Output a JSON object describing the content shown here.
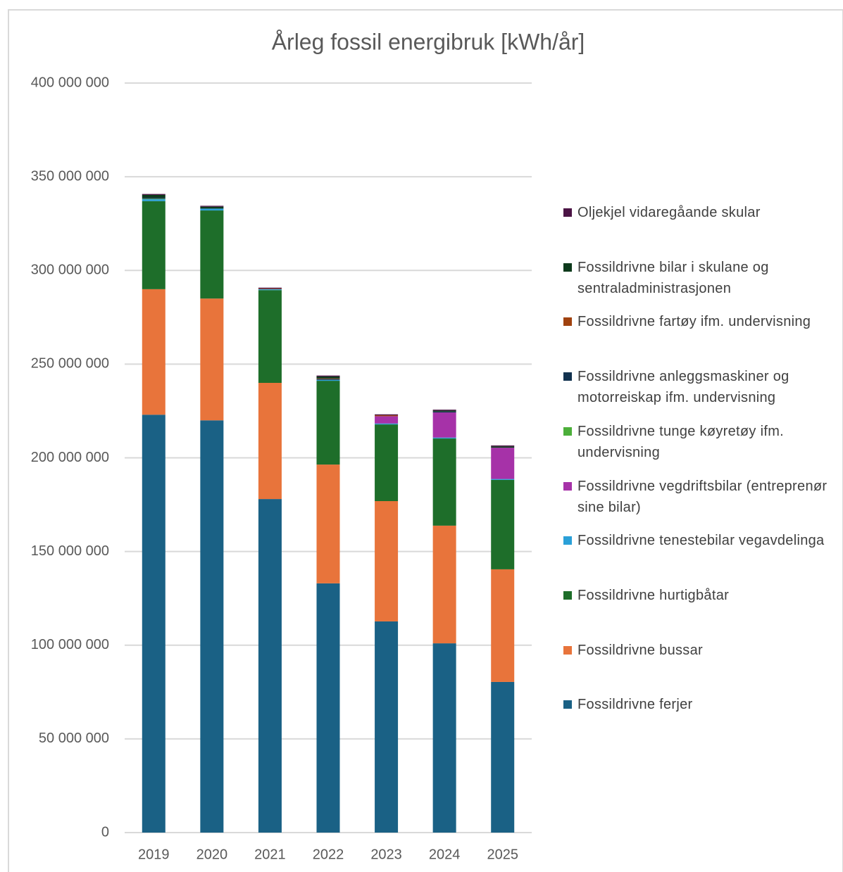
{
  "chart_data": {
    "type": "stacked_bar",
    "title": "Årleg fossil energibruk [kWh/år]",
    "categories": [
      "2019",
      "2020",
      "2021",
      "2022",
      "2023",
      "2024",
      "2025"
    ],
    "series": [
      {
        "name": "Fossildrivne ferjer",
        "color": "#1a6185",
        "values": [
          223000000,
          220000000,
          178000000,
          133000000,
          112700000,
          101000000,
          80400000
        ]
      },
      {
        "name": "Fossildrivne bussar",
        "color": "#e8743b",
        "values": [
          67000000,
          65000000,
          62000000,
          63400000,
          64200000,
          62800000,
          60100000
        ]
      },
      {
        "name": "Fossildrivne hurtigbåtar",
        "color": "#1e6e2a",
        "values": [
          47000000,
          47000000,
          49500000,
          44700000,
          40900000,
          46500000,
          47700000
        ]
      },
      {
        "name": "Fossildrivne tenestebilar vegavdelinga",
        "color": "#2aa0d8",
        "values": [
          1000000,
          1000000,
          500000,
          500000,
          500000,
          500000,
          500000
        ]
      },
      {
        "name": "Fossildrivne vegdriftsbilar (entreprenør sine bilar)",
        "color": "#a632a8",
        "values": [
          0,
          0,
          0,
          0,
          3900000,
          13400000,
          16700000
        ]
      },
      {
        "name": "Fossildrivne tunge køyretøy ifm. undervisning",
        "color": "#4caf3a",
        "values": [
          300000,
          0,
          0,
          0,
          0,
          0,
          0
        ]
      },
      {
        "name": "Fossildrivne anleggsmaskiner og motorreiskap ifm. undervisning",
        "color": "#12324f",
        "values": [
          500000,
          0,
          0,
          500000,
          0,
          500000,
          0
        ]
      },
      {
        "name": "Fossildrivne fartøy ifm. undervisning",
        "color": "#a0420f",
        "values": [
          0,
          0,
          300000,
          300000,
          500000,
          0,
          0
        ]
      },
      {
        "name": "Fossildrivne bilar i skulane og sentraladministrasjonen",
        "color": "#0d3a1c",
        "values": [
          1500000,
          1000000,
          0,
          1000000,
          0,
          500000,
          700000
        ]
      },
      {
        "name": "Oljekjel vidaregåande skular",
        "color": "#4b1445",
        "values": [
          500000,
          500000,
          500000,
          500000,
          500000,
          500000,
          500000
        ]
      }
    ],
    "ylim": [
      0,
      400000000
    ],
    "yticks": [
      0,
      {
        "value": 50000000,
        "label": "50 000 000"
      },
      {
        "value": 100000000,
        "label": "100 000 000"
      },
      {
        "value": 150000000,
        "label": "150 000 000"
      },
      {
        "value": 200000000,
        "label": "200 000 000"
      },
      {
        "value": 250000000,
        "label": "250 000 000"
      },
      {
        "value": 300000000,
        "label": "300 000 000"
      },
      {
        "value": 350000000,
        "label": "350 000 000"
      },
      {
        "value": 400000000,
        "label": "400 000 000"
      }
    ],
    "grid": true,
    "legend": "right"
  }
}
